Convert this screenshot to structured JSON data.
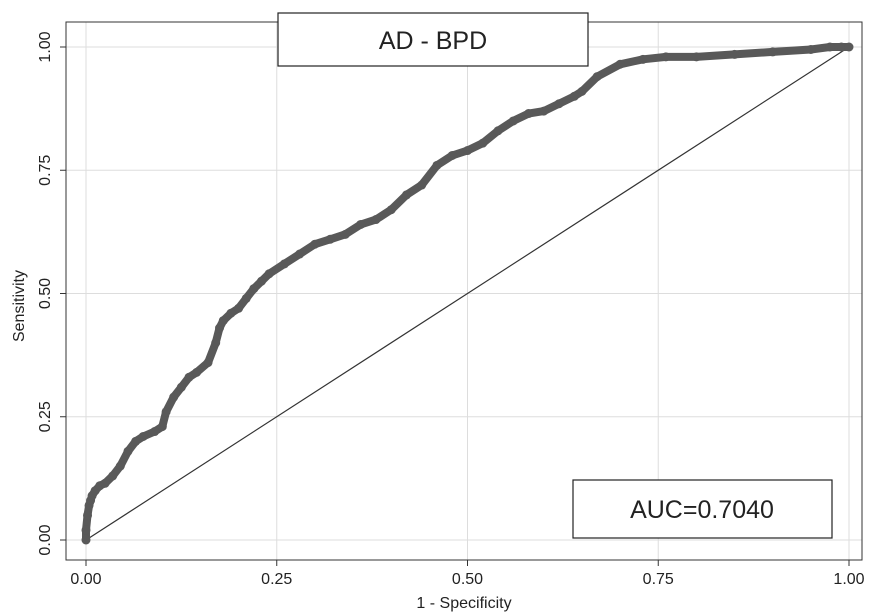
{
  "chart_data": {
    "type": "line",
    "title": "AD - BPD",
    "annotation": "AUC=0.7040",
    "xlabel": "1 - Specificity",
    "ylabel": "Sensitivity",
    "xlim": [
      0,
      1
    ],
    "ylim": [
      0,
      1
    ],
    "xticks": [
      "0.00",
      "0.25",
      "0.50",
      "0.75",
      "1.00"
    ],
    "yticks": [
      "0.00",
      "0.25",
      "0.50",
      "0.75",
      "1.00"
    ],
    "grid": true,
    "colors": {
      "roc": "#595959",
      "reference": "#333333",
      "grid": "#dddddd"
    },
    "series": [
      {
        "x": [
          0.0,
          0.0,
          0.002,
          0.004,
          0.006,
          0.008,
          0.012,
          0.018,
          0.025,
          0.035,
          0.045,
          0.055,
          0.065,
          0.075,
          0.09,
          0.1,
          0.105,
          0.115,
          0.125,
          0.135,
          0.145,
          0.16,
          0.17,
          0.175,
          0.18,
          0.19,
          0.2,
          0.21,
          0.22,
          0.23,
          0.24,
          0.26,
          0.28,
          0.3,
          0.32,
          0.34,
          0.36,
          0.38,
          0.4,
          0.42,
          0.44,
          0.46,
          0.48,
          0.5,
          0.52,
          0.54,
          0.56,
          0.58,
          0.6,
          0.62,
          0.64,
          0.65,
          0.67,
          0.7,
          0.73,
          0.76,
          0.8,
          0.85,
          0.9,
          0.95,
          0.975,
          0.99,
          1.0
        ],
        "y": [
          0.0,
          0.02,
          0.05,
          0.07,
          0.08,
          0.09,
          0.1,
          0.11,
          0.115,
          0.13,
          0.15,
          0.18,
          0.2,
          0.21,
          0.22,
          0.23,
          0.26,
          0.29,
          0.31,
          0.33,
          0.34,
          0.36,
          0.4,
          0.43,
          0.445,
          0.46,
          0.47,
          0.49,
          0.51,
          0.525,
          0.54,
          0.56,
          0.58,
          0.6,
          0.61,
          0.62,
          0.64,
          0.65,
          0.67,
          0.7,
          0.72,
          0.76,
          0.78,
          0.79,
          0.805,
          0.83,
          0.85,
          0.865,
          0.87,
          0.885,
          0.9,
          0.91,
          0.94,
          0.965,
          0.975,
          0.98,
          0.98,
          0.985,
          0.99,
          0.995,
          1.0,
          1.0,
          1.0
        ]
      }
    ]
  }
}
